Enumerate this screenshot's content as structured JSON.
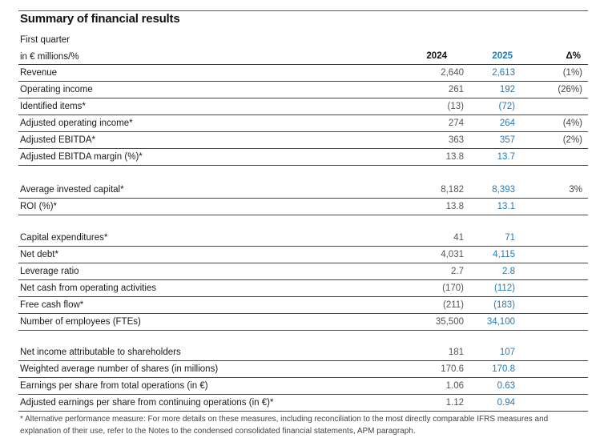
{
  "title": "Summary of financial results",
  "period": "First quarter",
  "unit": "in € millions/%",
  "columns": {
    "y2024": "2024",
    "y2025": "2025",
    "delta": "Δ%"
  },
  "groups": [
    [
      {
        "label": "Revenue",
        "v2024": "2,640",
        "v2025": "2,613",
        "delta": "(1%)"
      },
      {
        "label": "Operating income",
        "v2024": "261",
        "v2025": "192",
        "delta": "(26%)"
      },
      {
        "label": "Identified items*",
        "v2024": "(13)",
        "v2025": "(72)",
        "delta": ""
      },
      {
        "label": "Adjusted operating income*",
        "v2024": "274",
        "v2025": "264",
        "delta": "(4%)"
      },
      {
        "label": "Adjusted EBITDA*",
        "v2024": "363",
        "v2025": "357",
        "delta": "(2%)"
      },
      {
        "label": "Adjusted EBITDA margin (%)*",
        "v2024": "13.8",
        "v2025": "13.7",
        "delta": ""
      }
    ],
    [
      {
        "label": "Average invested capital*",
        "v2024": "8,182",
        "v2025": "8,393",
        "delta": "3%"
      },
      {
        "label": "ROI (%)*",
        "v2024": "13.8",
        "v2025": "13.1",
        "delta": ""
      }
    ],
    [
      {
        "label": "Capital expenditures*",
        "v2024": "41",
        "v2025": "71",
        "delta": ""
      },
      {
        "label": "Net debt*",
        "v2024": "4,031",
        "v2025": "4,115",
        "delta": ""
      },
      {
        "label": "Leverage ratio",
        "v2024": "2.7",
        "v2025": "2.8",
        "delta": ""
      },
      {
        "label": "Net cash from operating activities",
        "v2024": "(170)",
        "v2025": "(112)",
        "delta": ""
      },
      {
        "label": "Free cash flow*",
        "v2024": "(211)",
        "v2025": "(183)",
        "delta": ""
      },
      {
        "label": "Number of employees (FTEs)",
        "v2024": "35,500",
        "v2025": "34,100",
        "delta": ""
      }
    ],
    [
      {
        "label": "Net income attributable to shareholders",
        "v2024": "181",
        "v2025": "107",
        "delta": ""
      },
      {
        "label": "Weighted average number of shares (in millions)",
        "v2024": "170.6",
        "v2025": "170.8",
        "delta": ""
      },
      {
        "label": "Earnings per share from total operations (in €)",
        "v2024": "1.06",
        "v2025": "0.63",
        "delta": ""
      },
      {
        "label": "Adjusted earnings per share from continuing operations (in €)*",
        "v2024": "1.12",
        "v2025": "0.94",
        "delta": ""
      }
    ]
  ],
  "footnote": "* Alternative performance measure: For more details on these measures, including reconciliation to the most directly comparable IFRS measures and explanation of their use, refer to the Notes to the condensed consolidated financial statements, APM paragraph.",
  "colors": {
    "accent": "#1f7bbf",
    "text": "#1a1a1a",
    "muted": "#555555"
  }
}
